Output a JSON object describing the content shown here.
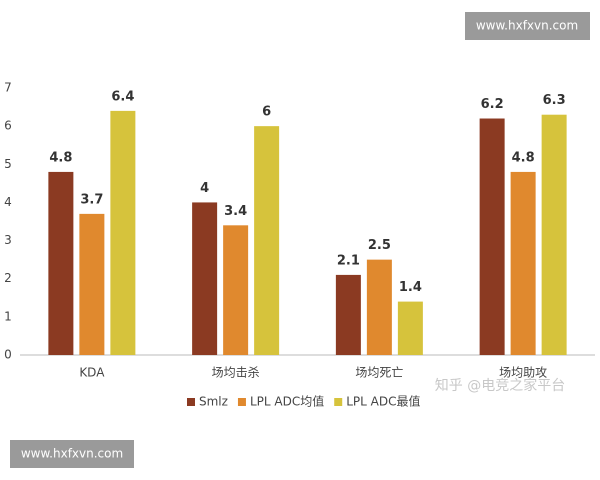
{
  "chart_data": {
    "type": "bar",
    "categories": [
      "KDA",
      "场均击杀",
      "场均死亡",
      "场均助攻"
    ],
    "series": [
      {
        "name": "Smlz",
        "color": "#8b3a22",
        "values": [
          4.8,
          4,
          2.1,
          6.2
        ]
      },
      {
        "name": "LPL ADC均值",
        "color": "#e0892e",
        "values": [
          3.7,
          3.4,
          2.5,
          4.8
        ]
      },
      {
        "name": "LPL ADC最值",
        "color": "#d6c33c",
        "values": [
          6.4,
          6,
          1.4,
          6.3
        ]
      }
    ],
    "ylim": [
      0,
      7
    ],
    "yticks": [
      0,
      1,
      2,
      3,
      4,
      5,
      6,
      7
    ],
    "grid": false,
    "legend": "bottom",
    "annotations": [
      "www.hxfxvn.com",
      "知乎 @电竞之家平台",
      "www.hxfxvn.com"
    ]
  }
}
